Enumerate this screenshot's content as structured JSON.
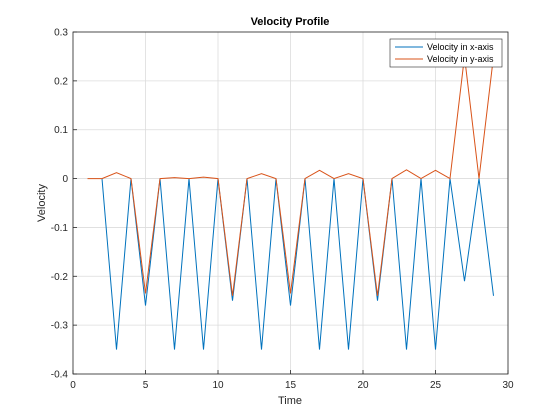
{
  "chart_data": {
    "type": "line",
    "title": "Velocity Profile",
    "xlabel": "Time",
    "ylabel": "Velocity",
    "xlim": [
      0,
      30
    ],
    "ylim": [
      -0.4,
      0.3
    ],
    "xticks": [
      0,
      5,
      10,
      15,
      20,
      25,
      30
    ],
    "yticks": [
      -0.4,
      -0.3,
      -0.2,
      -0.1,
      0,
      0.1,
      0.2,
      0.3
    ],
    "xtick_labels": [
      "0",
      "5",
      "10",
      "15",
      "20",
      "25",
      "30"
    ],
    "ytick_labels": [
      "-0.4",
      "-0.3",
      "-0.2",
      "-0.1",
      "0",
      "0.1",
      "0.2",
      "0.3"
    ],
    "grid": true,
    "legend_position": "top-right",
    "series": [
      {
        "name": "Velocity in x-axis",
        "color": "#0072BD",
        "x": [
          2,
          3,
          4,
          5,
          6,
          7,
          8,
          9,
          10,
          11,
          12,
          13,
          14,
          15,
          16,
          17,
          18,
          19,
          20,
          21,
          22,
          23,
          24,
          25,
          26,
          27,
          28,
          29
        ],
        "y": [
          0,
          -0.35,
          0,
          -0.26,
          0,
          -0.35,
          0,
          -0.35,
          0,
          -0.25,
          0,
          -0.35,
          0,
          -0.26,
          0,
          -0.35,
          0,
          -0.35,
          0,
          -0.25,
          0,
          -0.35,
          0,
          -0.35,
          0,
          -0.21,
          0,
          -0.24
        ]
      },
      {
        "name": "Velocity in y-axis",
        "color": "#D95319",
        "x": [
          1,
          2,
          3,
          4,
          5,
          6,
          7,
          8,
          9,
          10,
          11,
          12,
          13,
          14,
          15,
          16,
          17,
          18,
          19,
          20,
          21,
          22,
          23,
          24,
          25,
          26,
          27,
          28,
          29
        ],
        "y": [
          0,
          0,
          0.012,
          0,
          -0.235,
          0,
          0.002,
          0,
          0.003,
          0,
          -0.24,
          0,
          0.01,
          0,
          -0.235,
          0,
          0.017,
          0,
          0.01,
          0,
          -0.24,
          0,
          0.018,
          0,
          0.017,
          0,
          0.25,
          0,
          0.25
        ]
      }
    ]
  }
}
